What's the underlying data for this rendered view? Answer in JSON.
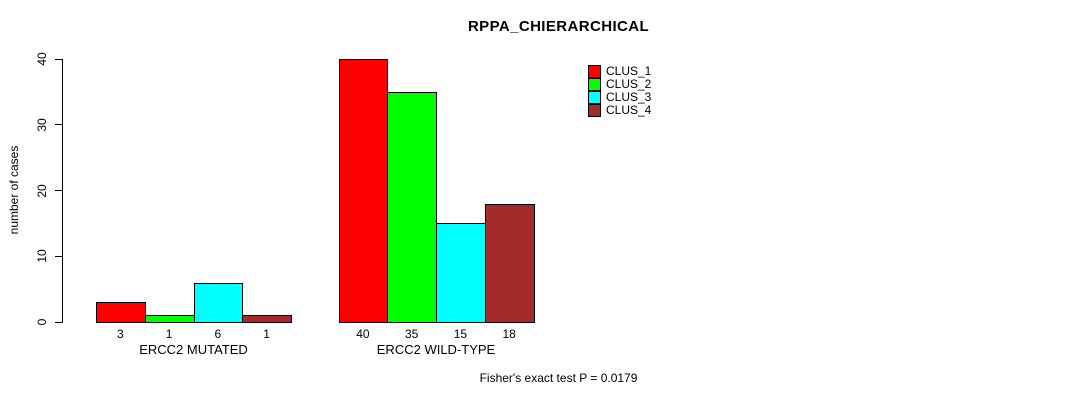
{
  "chart_data": {
    "type": "bar",
    "title": "RPPA_CHIERARCHICAL",
    "ylabel": "number of cases",
    "xlabel": "",
    "ylim": [
      0,
      40
    ],
    "yticks": [
      0,
      10,
      20,
      30,
      40
    ],
    "categories": [
      "ERCC2 MUTATED",
      "ERCC2 WILD-TYPE"
    ],
    "series": [
      {
        "name": "CLUS_1",
        "color": "#FF0000",
        "values": [
          3,
          40
        ]
      },
      {
        "name": "CLUS_2",
        "color": "#00FF00",
        "values": [
          1,
          35
        ]
      },
      {
        "name": "CLUS_3",
        "color": "#00FFFF",
        "values": [
          6,
          15
        ]
      },
      {
        "name": "CLUS_4",
        "color": "#A52A2A",
        "values": [
          1,
          18
        ]
      }
    ],
    "bar_value_labels": [
      [
        3,
        1,
        6,
        1
      ],
      [
        40,
        35,
        15,
        18
      ]
    ],
    "legend_position": "top-right",
    "grid": false,
    "annotation": "Fisher's exact test P = 0.0179",
    "axis_color": "#000000",
    "background_color": "#FFFFFF"
  }
}
